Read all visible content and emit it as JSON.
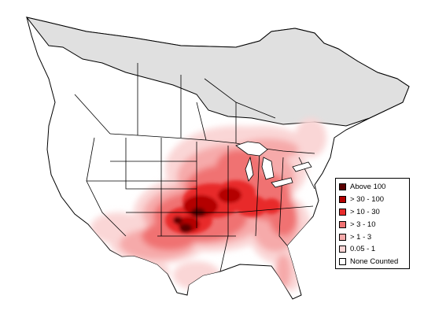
{
  "colors": {
    "land_outline": "#000000",
    "not_surveyed": "#e0e0e0",
    "background": "#ffffff"
  },
  "legend": {
    "items": [
      {
        "label": "Above 100",
        "color": "#5a0000"
      },
      {
        "label": "> 30 - 100",
        "color": "#b40000"
      },
      {
        "label": "> 10 - 30",
        "color": "#e82c2c"
      },
      {
        "label": "> 3 - 10",
        "color": "#f07272"
      },
      {
        "label": "> 1 - 3",
        "color": "#f6aaaa"
      },
      {
        "label": "0.05 - 1",
        "color": "#fad6d6"
      },
      {
        "label": "None Counted",
        "color": "#ffffff"
      }
    ]
  }
}
